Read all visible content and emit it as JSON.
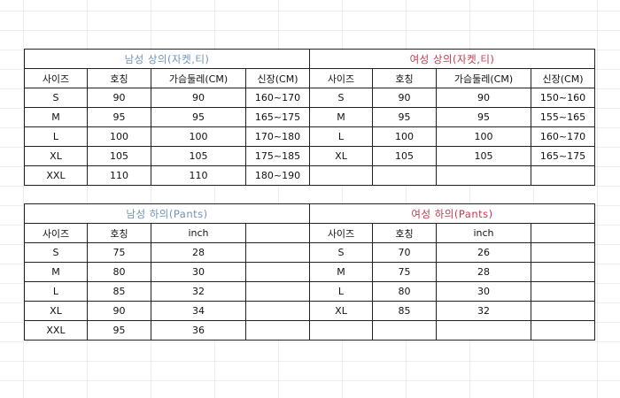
{
  "tables": [
    {
      "id": "t1",
      "group": "men",
      "title": "남성 상의(자켓,티)",
      "headers": [
        "사이즈",
        "호칭",
        "가슴둘레(CM)",
        "신장(CM)"
      ],
      "rows": [
        [
          "S",
          "90",
          "90",
          "160~170"
        ],
        [
          "M",
          "95",
          "95",
          "165~175"
        ],
        [
          "L",
          "100",
          "100",
          "170~180"
        ],
        [
          "XL",
          "105",
          "105",
          "175~185"
        ],
        [
          "XXL",
          "110",
          "110",
          "180~190"
        ]
      ]
    },
    {
      "id": "t2",
      "group": "women",
      "title": "여성 상의(자켓,티)",
      "headers": [
        "사이즈",
        "호칭",
        "가슴둘레(CM)",
        "신장(CM)"
      ],
      "rows": [
        [
          "S",
          "90",
          "90",
          "150~160"
        ],
        [
          "M",
          "95",
          "95",
          "155~165"
        ],
        [
          "L",
          "100",
          "100",
          "160~170"
        ],
        [
          "XL",
          "105",
          "105",
          "165~175"
        ],
        [
          "",
          "",
          "",
          ""
        ]
      ]
    },
    {
      "id": "t3",
      "group": "men",
      "title": "남성 하의(Pants)",
      "headers": [
        "사이즈",
        "호칭",
        "inch",
        ""
      ],
      "rows": [
        [
          "S",
          "75",
          "28",
          ""
        ],
        [
          "M",
          "80",
          "30",
          ""
        ],
        [
          "L",
          "85",
          "32",
          ""
        ],
        [
          "XL",
          "90",
          "34",
          ""
        ],
        [
          "XXL",
          "95",
          "36",
          ""
        ]
      ]
    },
    {
      "id": "t4",
      "group": "women",
      "title": "여성 하의(Pants)",
      "headers": [
        "사이즈",
        "호칭",
        "inch",
        ""
      ],
      "rows": [
        [
          "S",
          "70",
          "26",
          ""
        ],
        [
          "M",
          "75",
          "28",
          ""
        ],
        [
          "L",
          "80",
          "30",
          ""
        ],
        [
          "XL",
          "85",
          "32",
          ""
        ],
        [
          "",
          "",
          "",
          ""
        ]
      ]
    }
  ],
  "colors": {
    "men_title": "#6f93b8",
    "women_title": "#c23a50"
  }
}
